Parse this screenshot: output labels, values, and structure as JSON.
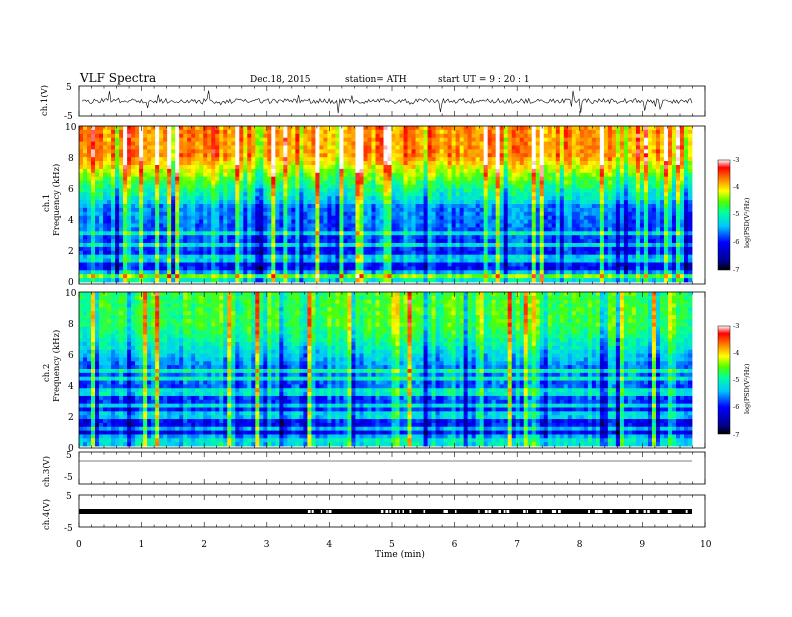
{
  "header": {
    "title": "VLF  Spectra",
    "date": "Dec.18, 2015",
    "station": "station= ATH",
    "start": "start  UT  =    9  : 20 : 1"
  },
  "chart_data": [
    {
      "type": "line",
      "panel": "ch1-waveform",
      "ylabel": "ch.1(V)",
      "yticks": [
        "5",
        "-5"
      ],
      "ylim": [
        -5,
        5
      ],
      "xlim": [
        0,
        10
      ],
      "x_extent_min": [
        0,
        9.8
      ],
      "trace_color": "#000000"
    },
    {
      "type": "heatmap",
      "panel": "ch1-spectrogram",
      "ylabel": "Frequency  (kHz)",
      "channel_label": "ch.1",
      "yticks": [
        "0",
        "2",
        "4",
        "6",
        "8",
        "10"
      ],
      "ylim": [
        0,
        10
      ],
      "xlim": [
        0,
        10
      ],
      "colorbar": {
        "label": "log(PSD(V²/Hz)",
        "ticks": [
          "-3",
          "-4",
          "-5",
          "-6",
          "-7"
        ],
        "range": [
          -7,
          -3
        ]
      }
    },
    {
      "type": "heatmap",
      "panel": "ch2-spectrogram",
      "ylabel": "Frequency  (kHz)",
      "channel_label": "ch.2",
      "yticks": [
        "0",
        "2",
        "4",
        "6",
        "8",
        "10"
      ],
      "ylim": [
        0,
        10
      ],
      "xlim": [
        0,
        10
      ],
      "colorbar": {
        "label": "log(PSD(V²/Hz)",
        "ticks": [
          "-3",
          "-4",
          "-5",
          "-6",
          "-7"
        ],
        "range": [
          -7,
          -3
        ]
      }
    },
    {
      "type": "line",
      "panel": "ch3-waveform",
      "ylabel": "ch.3(V)",
      "yticks": [
        "5",
        "-5"
      ],
      "ylim": [
        -5,
        5
      ],
      "xlim": [
        0,
        10
      ]
    },
    {
      "type": "line",
      "panel": "ch4-waveform",
      "ylabel": "ch.4(V)",
      "yticks": [
        "5",
        "-5"
      ],
      "ylim": [
        -5,
        5
      ],
      "xlim": [
        0,
        10
      ]
    }
  ],
  "xaxis": {
    "label": "Time  (min)",
    "ticks": [
      "0",
      "1",
      "2",
      "3",
      "4",
      "5",
      "6",
      "7",
      "8",
      "9",
      "10"
    ]
  }
}
